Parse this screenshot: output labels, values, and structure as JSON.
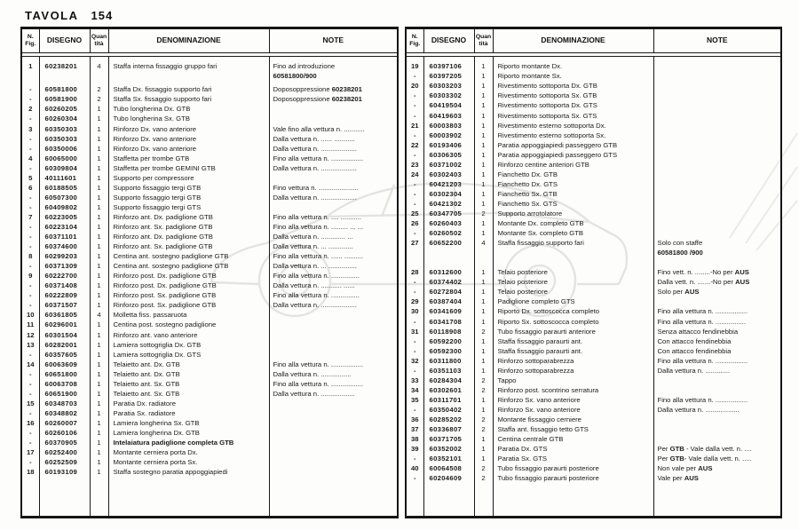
{
  "page": {
    "title_label": "TAVOLA",
    "title_number": "154"
  },
  "table_headers": {
    "fig1": "N.",
    "fig2": "Fig.",
    "disegno": "DISEGNO",
    "qty1": "Quan",
    "qty2": "tità",
    "denom": "DENOMINAZIONE",
    "note": "NOTE"
  },
  "left_table": {
    "rows": [
      {
        "fig": "1",
        "disegno": "60238201",
        "qty": "4",
        "denom": "Staffa interna fissaggio gruppo fari",
        "note": "Fino ad introduzione"
      },
      {
        "fig": "",
        "disegno": "",
        "qty": "",
        "denom": "",
        "note": "**60581800/900**"
      },
      {
        "fig": "-",
        "disegno": "60581800",
        "qty": "2",
        "denom": "Staffa Dx. fissaggio supporto fari",
        "note": "Doposoppressione **60238201**",
        "gap": true
      },
      {
        "fig": "-",
        "disegno": "60581900",
        "qty": "2",
        "denom": "Staffa Sx. fissaggio supporto fari",
        "note": "Doposoppressione **60238201**"
      },
      {
        "fig": "2",
        "disegno": "60260205",
        "qty": "1",
        "denom": "Tubo longherina Dx. GTB",
        "note": ""
      },
      {
        "fig": "-",
        "disegno": "60260304",
        "qty": "1",
        "denom": "Tubo longherina Sx. GTB",
        "note": ""
      },
      {
        "fig": "3",
        "disegno": "60350303",
        "qty": "1",
        "denom": "Rinforzo Dx. vano anteriore",
        "note": "Vale fino alla vettura n. ..........."
      },
      {
        "fig": "-",
        "disegno": "60350303",
        "qty": "1",
        "denom": "Rinforzo Dx. vano anteriore",
        "note": "Dalla vettura n. ...... ..........."
      },
      {
        "fig": "-",
        "disegno": "60350006",
        "qty": "1",
        "denom": "Rinforzo Dx. vano anteriore",
        "note": "Dalla vettura n. ..................."
      },
      {
        "fig": "4",
        "disegno": "60065000",
        "qty": "1",
        "denom": "Staffetta per trombe GTB",
        "note": "Fino alla vettura n. ................."
      },
      {
        "fig": "-",
        "disegno": "60309804",
        "qty": "1",
        "denom": "Staffetta per trombe GEMINI GTB",
        "note": "Dalla vettura n. ..................."
      },
      {
        "fig": "5",
        "disegno": "40111601",
        "qty": "1",
        "denom": "Supporto per compressore",
        "note": ""
      },
      {
        "fig": "6",
        "disegno": "60188505",
        "qty": "1",
        "denom": "Supporto fissaggio tergi GTB",
        "note": "Fino vettura n. ....................."
      },
      {
        "fig": "-",
        "disegno": "60507300",
        "qty": "1",
        "denom": "Supporto fissaggio tergi GTB",
        "note": "Dalla vettura n. ..................."
      },
      {
        "fig": "-",
        "disegno": "60409802",
        "qty": "1",
        "denom": "Supporto fissaggio tergi GTS",
        "note": ""
      },
      {
        "fig": "7",
        "disegno": "60223005",
        "qty": "1",
        "denom": "Rinforzo ant. Dx. padiglione GTB",
        "note": "Fino alla vettura n. .... ..........."
      },
      {
        "fig": "-",
        "disegno": "60223104",
        "qty": "1",
        "denom": "Rinforzo ant. Sx. padiglione GTB",
        "note": "Fino alla vettura n. ......... ... ..."
      },
      {
        "fig": "-",
        "disegno": "60371101",
        "qty": "1",
        "denom": "Rinforzo ant. Dx. padiglione GTB",
        "note": "Dalla vettura n. ............. ..."
      },
      {
        "fig": "-",
        "disegno": "60374600",
        "qty": "1",
        "denom": "Rinforzo ant. Sx. padiglione GTB",
        "note": "Dalla vettura n. ... ............."
      },
      {
        "fig": "8",
        "disegno": "60299203",
        "qty": "1",
        "denom": "Centina ant. sostegno padiglione GTB",
        "note": "Fino alla vettura n. ...... .........."
      },
      {
        "fig": "-",
        "disegno": "60371309",
        "qty": "1",
        "denom": "Centina ant. sostegno padiglione GTB",
        "note": "Dalla vettura n. ... ..............."
      },
      {
        "fig": "9",
        "disegno": "60222700",
        "qty": "1",
        "denom": "Rinforzo post. Dx. padiglione GTB",
        "note": "Fino alla vettura n. ..............."
      },
      {
        "fig": "-",
        "disegno": "60371408",
        "qty": "1",
        "denom": "Rinforzo post. Dx. padiglione GTB",
        "note": "Dalla vettura n. ........... ......"
      },
      {
        "fig": "-",
        "disegno": "60222809",
        "qty": "1",
        "denom": "Rinforzo post. Sx. padiglione GTB",
        "note": "Fino alla vettura n. ..............."
      },
      {
        "fig": "-",
        "disegno": "60371507",
        "qty": "1",
        "denom": "Rinforzo post. Sx. padiglione GTB",
        "note": "Dalla vettura n. ..................."
      },
      {
        "fig": "10",
        "disegno": "60361805",
        "qty": "4",
        "denom": "Molletta fiss. passaruota",
        "note": ""
      },
      {
        "fig": "11",
        "disegno": "60296001",
        "qty": "1",
        "denom": "Centina post. sostegno padiglione",
        "note": ""
      },
      {
        "fig": "12",
        "disegno": "60301504",
        "qty": "1",
        "denom": "Rinforzo ant. vano anteriore",
        "note": ""
      },
      {
        "fig": "13",
        "disegno": "60282001",
        "qty": "1",
        "denom": "Lamiera sottogriglia Dx. GTB",
        "note": ""
      },
      {
        "fig": "-",
        "disegno": "60357605",
        "qty": "1",
        "denom": "Lamiera sottogriglia Dx. GTS",
        "note": ""
      },
      {
        "fig": "14",
        "disegno": "60063609",
        "qty": "1",
        "denom": "Telaietto ant. Dx. GTB",
        "note": "Fino alla vettura n. ................."
      },
      {
        "fig": "-",
        "disegno": "60651800",
        "qty": "1",
        "denom": "Telaietto ant. Dx. GTB",
        "note": "Dalla vettura n. ................"
      },
      {
        "fig": "-",
        "disegno": "60063708",
        "qty": "1",
        "denom": "Telaietto ant. Sx. GTB",
        "note": "Fino alla vettura n. ................."
      },
      {
        "fig": "-",
        "disegno": "60651900",
        "qty": "1",
        "denom": "Telaietto ant. Sx. GTB",
        "note": "Dalla vettura n. .................."
      },
      {
        "fig": "15",
        "disegno": "60348703",
        "qty": "1",
        "denom": "Paratia Dx. radiatore",
        "note": ""
      },
      {
        "fig": "-",
        "disegno": "60348802",
        "qty": "1",
        "denom": "Paratia Sx. radiatore",
        "note": ""
      },
      {
        "fig": "16",
        "disegno": "60260007",
        "qty": "1",
        "denom": "Lamiera longherina Sx. GTB",
        "note": ""
      },
      {
        "fig": "-",
        "disegno": "60260106",
        "qty": "1",
        "denom": "Lamiera longherina Dx. GTB",
        "note": ""
      },
      {
        "fig": "-",
        "disegno": "60370905",
        "qty": "1",
        "denom": "**Intelaiatura padiglione completa GTB**",
        "note": ""
      },
      {
        "fig": "17",
        "disegno": "60252400",
        "qty": "1",
        "denom": "Montante cerniera porta Dx.",
        "note": ""
      },
      {
        "fig": "-",
        "disegno": "60252509",
        "qty": "1",
        "denom": "Montante cerniera porta Sx.",
        "note": ""
      },
      {
        "fig": "18",
        "disegno": "60193109",
        "qty": "1",
        "denom": "Staffa sostegno paratia appoggiapiedi",
        "note": ""
      }
    ]
  },
  "right_table": {
    "rows": [
      {
        "fig": "19",
        "disegno": "60397106",
        "qty": "1",
        "denom": "Riporto montante Dx.",
        "note": ""
      },
      {
        "fig": "-",
        "disegno": "60397205",
        "qty": "1",
        "denom": "Riporto montante Sx.",
        "note": ""
      },
      {
        "fig": "20",
        "disegno": "60303203",
        "qty": "1",
        "denom": "Rivestimento sottoporta Dx. GTB",
        "note": ""
      },
      {
        "fig": "-",
        "disegno": "60303302",
        "qty": "1",
        "denom": "Rivestimento sottoporta Sx. GTB",
        "note": ""
      },
      {
        "fig": "-",
        "disegno": "60419504",
        "qty": "1",
        "denom": "Rivestimento sottoporta Dx. GTS",
        "note": ""
      },
      {
        "fig": "-",
        "disegno": "60419603",
        "qty": "1",
        "denom": "Rivestimento sottoporta Sx. GTS",
        "note": ""
      },
      {
        "fig": "21",
        "disegno": "60003803",
        "qty": "1",
        "denom": "Rivestimento esterno sottoporta Dx.",
        "note": ""
      },
      {
        "fig": "-",
        "disegno": "60003902",
        "qty": "1",
        "denom": "Rivestimento esterno sottoporta Sx.",
        "note": ""
      },
      {
        "fig": "22",
        "disegno": "60193406",
        "qty": "1",
        "denom": "Paratia appoggiapiedi passeggero GTB",
        "note": ""
      },
      {
        "fig": "-",
        "disegno": "60306305",
        "qty": "1",
        "denom": "Paratia appoggiapiedi passeggero GTS",
        "note": ""
      },
      {
        "fig": "23",
        "disegno": "60371002",
        "qty": "1",
        "denom": "Rinforzo centine anteriori GTB",
        "note": ""
      },
      {
        "fig": "24",
        "disegno": "60302403",
        "qty": "1",
        "denom": "Fianchetto Dx. GTB",
        "note": ""
      },
      {
        "fig": "-",
        "disegno": "60421203",
        "qty": "1",
        "denom": "Fianchetto Dx. GTS",
        "note": ""
      },
      {
        "fig": "-",
        "disegno": "60302304",
        "qty": "1",
        "denom": "Fianchetto Sx. GTB",
        "note": ""
      },
      {
        "fig": "-",
        "disegno": "60421302",
        "qty": "1",
        "denom": "Fianchetto Sx. GTS",
        "note": ""
      },
      {
        "fig": "25",
        "disegno": "60347705",
        "qty": "2",
        "denom": "Supporto arrotolatore",
        "note": ""
      },
      {
        "fig": "26",
        "disegno": "60260403",
        "qty": "1",
        "denom": "Montante Dx. completo GTB",
        "note": ""
      },
      {
        "fig": "-",
        "disegno": "60260502",
        "qty": "1",
        "denom": "Montante Sx. completo GTB",
        "note": ""
      },
      {
        "fig": "27",
        "disegno": "60652200",
        "qty": "4",
        "denom": "Staffa fissaggio supporto fari",
        "note": "Solo con staffe"
      },
      {
        "fig": "",
        "disegno": "",
        "qty": "",
        "denom": "",
        "note": "**60581800 /900**"
      },
      {
        "fig": "",
        "disegno": "",
        "qty": "",
        "denom": "",
        "note": ""
      },
      {
        "fig": "28",
        "disegno": "60312600",
        "qty": "1",
        "denom": "Telaio posteriore",
        "note": "Fino vett. n. ........-No per **AUS**"
      },
      {
        "fig": "-",
        "disegno": "60374402",
        "qty": "1",
        "denom": "Telaio posteriore",
        "note": "Dalla vett. n. .......-No per **AUS**"
      },
      {
        "fig": "-",
        "disegno": "60272804",
        "qty": "1",
        "denom": "Telaio posteriore",
        "note": "Solo per **AUS**"
      },
      {
        "fig": "29",
        "disegno": "60387404",
        "qty": "1",
        "denom": "Padiglione completo GTS",
        "note": ""
      },
      {
        "fig": "30",
        "disegno": "60341609",
        "qty": "1",
        "denom": "Riporto Dx. sottoscocca completo",
        "note": "Fino alla vettura n. ................."
      },
      {
        "fig": "-",
        "disegno": "60341708",
        "qty": "1",
        "denom": "Riporto Sx. sottoscocca completo",
        "note": "Fino alla vettura n. ................"
      },
      {
        "fig": "31",
        "disegno": "60118908",
        "qty": "2",
        "denom": "Tubo fissaggio paraurti anteriore",
        "note": "Senza attacco fendinebbia"
      },
      {
        "fig": "-",
        "disegno": "60592200",
        "qty": "1",
        "denom": "Staffa fissaggio paraurti ant.",
        "note": "Con attacco fendinebbia"
      },
      {
        "fig": "-",
        "disegno": "60592300",
        "qty": "1",
        "denom": "Staffa fissaggio paraurti ant.",
        "note": "Con attacco fendinebbia"
      },
      {
        "fig": "32",
        "disegno": "60311800",
        "qty": "1",
        "denom": "Rinforzo sottoparabrezza",
        "note": "Fino alla vettura n. ................."
      },
      {
        "fig": "-",
        "disegno": "60351103",
        "qty": "1",
        "denom": "Rinforzo sottoparabrezza",
        "note": "Dalla vettura n. ............."
      },
      {
        "fig": "33",
        "disegno": "60284304",
        "qty": "2",
        "denom": "Tappo",
        "note": ""
      },
      {
        "fig": "34",
        "disegno": "60302601",
        "qty": "2",
        "denom": "Rinforzo post. scontrino serratura",
        "note": ""
      },
      {
        "fig": "35",
        "disegno": "60311701",
        "qty": "1",
        "denom": "Rinforzo Sx. vano anteriore",
        "note": "Fino alla vettura n. ................."
      },
      {
        "fig": "-",
        "disegno": "60350402",
        "qty": "1",
        "denom": "Rinforzo Sx. vano anteriore",
        "note": "Dalla vettura n. .................."
      },
      {
        "fig": "36",
        "disegno": "60285202",
        "qty": "2",
        "denom": "Montante fissaggio cerniere",
        "note": ""
      },
      {
        "fig": "37",
        "disegno": "60336807",
        "qty": "2",
        "denom": "Staffa ant. fissaggio tetto GTS",
        "note": ""
      },
      {
        "fig": "38",
        "disegno": "60371705",
        "qty": "1",
        "denom": "Centina centrale GTB",
        "note": ""
      },
      {
        "fig": "39",
        "disegno": "60352002",
        "qty": "1",
        "denom": "Paratia Dx. GTS",
        "note": "Per **GTB** - Vale dalla vett. n. ...."
      },
      {
        "fig": "-",
        "disegno": "60352101",
        "qty": "1",
        "denom": "Paratia Sx. GTS",
        "note": "Per **GTB**- Vale dalla vett. n. ....."
      },
      {
        "fig": "40",
        "disegno": "60064508",
        "qty": "2",
        "denom": "Tubo fissaggio paraurti posteriore",
        "note": "Non vale per **AUS**"
      },
      {
        "fig": "-",
        "disegno": "60204609",
        "qty": "2",
        "denom": "Tubo fissaggio paraurti posteriore",
        "note": "Vale per **AUS**"
      }
    ]
  }
}
